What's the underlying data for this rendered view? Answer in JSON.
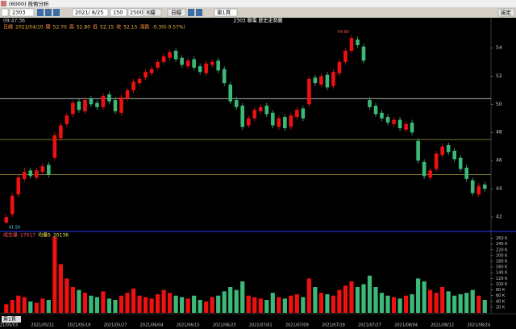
{
  "toolbar": {
    "window_title": "(6000) 技術分析",
    "symbol": "2303",
    "date": "2021/ 8/25",
    "count": "150",
    "count2": "2500",
    "buttons": [
      "K線",
      "日線",
      "設定"
    ],
    "page": "第1頁"
  },
  "status": {
    "time": "09:47:36",
    "info": [
      "日線",
      "2021/04/10",
      "開",
      "52.70",
      "高",
      "52.80",
      "低",
      "52.15",
      "收",
      "52.15",
      "漲跌",
      "-0.30(-0.57%)"
    ]
  },
  "chart_data": {
    "type": "candlestick",
    "title": "2303 聯電 歷史走勢圖",
    "categories": [
      "2021/05/03",
      null,
      null,
      null,
      null,
      null,
      "2021/05/11",
      null,
      null,
      null,
      null,
      null,
      "2021/05/19",
      null,
      null,
      null,
      null,
      null,
      "2021/05/27",
      null,
      null,
      null,
      null,
      null,
      "2021/06/04",
      null,
      null,
      null,
      null,
      null,
      "2021/06/15",
      null,
      null,
      null,
      null,
      null,
      "2021/06/23",
      null,
      null,
      null,
      null,
      null,
      "2021/07/01",
      null,
      null,
      null,
      null,
      null,
      "2021/07/09",
      null,
      null,
      null,
      null,
      null,
      "2021/07/19",
      null,
      null,
      null,
      null,
      null,
      "2021/07/27",
      null,
      null,
      null,
      null,
      null,
      "2021/08/04",
      null,
      null,
      null,
      null,
      null,
      "2021/08/12",
      null,
      null,
      null,
      null,
      null,
      "2021/08/24",
      null
    ],
    "open": [
      41.6,
      42.2,
      43.6,
      44.7,
      45.3,
      44.8,
      45.2,
      45.7,
      46.2,
      47.6,
      48.6,
      49.3,
      50.2,
      49.5,
      50.4,
      50.1,
      49.8,
      50.7,
      50.3,
      49.4,
      50.4,
      51.0,
      51.5,
      51.9,
      52.2,
      52.6,
      53.0,
      53.3,
      53.8,
      53.3,
      52.7,
      53.2,
      52.7,
      52.2,
      52.8,
      53.1,
      52.5,
      51.4,
      50.3,
      49.9,
      48.5,
      49.0,
      49.5,
      49.9,
      49.4,
      48.4,
      49.1,
      48.4,
      49.1,
      49.7,
      50.0,
      51.9,
      51.4,
      52.1,
      51.3,
      52.2,
      53.0,
      53.8,
      54.6,
      54.1,
      50.3,
      49.9,
      49.4,
      49.1,
      48.6,
      48.9,
      48.2,
      48.7,
      47.4,
      45.9,
      44.8,
      45.4,
      46.4,
      47.1,
      46.7,
      46.2,
      45.5,
      44.6,
      43.6,
      44.3
    ],
    "high": [
      42.2,
      43.7,
      45.0,
      45.5,
      45.5,
      45.5,
      45.8,
      45.9,
      48.0,
      48.7,
      49.4,
      50.3,
      50.4,
      50.5,
      50.6,
      50.3,
      50.8,
      50.9,
      50.5,
      50.7,
      51.2,
      51.8,
      52.0,
      52.5,
      52.7,
      53.2,
      53.6,
      53.9,
      54.0,
      53.5,
      53.3,
      53.4,
      52.9,
      53.1,
      53.2,
      53.3,
      52.7,
      51.6,
      50.5,
      50.1,
      49.2,
      49.8,
      50.0,
      50.1,
      49.6,
      49.2,
      49.3,
      49.4,
      49.8,
      49.9,
      52.0,
      52.1,
      52.2,
      52.3,
      52.5,
      53.2,
      54.0,
      54.9,
      54.8,
      54.3,
      50.5,
      50.1,
      49.6,
      49.3,
      49.1,
      49.1,
      48.8,
      48.9,
      47.6,
      46.1,
      45.5,
      46.7,
      47.2,
      47.3,
      46.9,
      46.4,
      45.7,
      44.8,
      44.4,
      44.5
    ],
    "low": [
      41.5,
      42.0,
      43.4,
      44.5,
      44.7,
      44.6,
      45.0,
      44.8,
      46.0,
      47.4,
      48.4,
      49.1,
      49.4,
      49.3,
      49.8,
      49.6,
      49.6,
      50.0,
      49.3,
      49.2,
      50.2,
      50.8,
      51.3,
      51.7,
      52.0,
      52.4,
      52.8,
      53.1,
      53.0,
      52.6,
      52.5,
      52.4,
      52.1,
      52.0,
      52.6,
      52.2,
      51.3,
      50.0,
      49.6,
      48.2,
      48.3,
      48.8,
      49.3,
      49.1,
      48.3,
      48.2,
      48.1,
      48.2,
      48.9,
      48.8,
      49.8,
      51.3,
      51.2,
      51.0,
      51.1,
      52.0,
      52.8,
      53.6,
      54.0,
      52.9,
      49.6,
      49.1,
      48.8,
      48.5,
      48.4,
      48.1,
      48.0,
      47.8,
      45.8,
      44.7,
      44.6,
      45.2,
      46.2,
      46.4,
      45.9,
      45.2,
      44.5,
      43.5,
      43.4,
      43.8
    ],
    "close": [
      42.0,
      43.5,
      44.8,
      45.2,
      44.9,
      45.3,
      45.6,
      45.0,
      47.8,
      48.5,
      49.2,
      50.1,
      49.6,
      50.3,
      50.0,
      49.8,
      50.6,
      50.2,
      49.5,
      50.5,
      51.0,
      51.6,
      51.8,
      52.3,
      52.5,
      53.0,
      53.4,
      53.7,
      53.2,
      52.8,
      53.1,
      52.6,
      52.3,
      52.9,
      53.0,
      52.4,
      51.5,
      50.2,
      49.8,
      48.4,
      49.0,
      49.6,
      49.8,
      49.3,
      48.5,
      49.0,
      48.3,
      49.2,
      49.6,
      49.0,
      51.8,
      51.5,
      52.0,
      51.2,
      52.3,
      53.0,
      53.8,
      54.7,
      54.2,
      53.1,
      49.8,
      49.3,
      49.0,
      48.7,
      48.9,
      48.3,
      48.6,
      48.0,
      46.0,
      44.9,
      45.3,
      46.5,
      47.0,
      46.6,
      46.1,
      45.4,
      44.7,
      43.7,
      44.2,
      44.0
    ],
    "volume": [
      30,
      45,
      60,
      55,
      40,
      35,
      50,
      45,
      265,
      170,
      120,
      90,
      80,
      70,
      60,
      55,
      75,
      50,
      45,
      60,
      70,
      85,
      60,
      55,
      50,
      65,
      80,
      70,
      60,
      55,
      50,
      60,
      45,
      40,
      55,
      60,
      75,
      90,
      80,
      110,
      60,
      55,
      50,
      45,
      70,
      55,
      50,
      60,
      65,
      55,
      120,
      90,
      70,
      65,
      60,
      80,
      95,
      110,
      90,
      100,
      130,
      90,
      70,
      60,
      55,
      50,
      60,
      65,
      120,
      110,
      80,
      70,
      90,
      75,
      60,
      65,
      70,
      80,
      60,
      45
    ],
    "up_color": "#ee1111",
    "down_color": "#3cb878",
    "ylim": [
      41.2,
      55.0
    ],
    "yticks": [
      42,
      44,
      46,
      48,
      50,
      52,
      54
    ],
    "hlines": [
      {
        "value": 50.4,
        "color": "#c8c8c8"
      },
      {
        "value": 47.5,
        "color": "#a8a040"
      },
      {
        "value": 45.0,
        "color": "#a8a040"
      }
    ],
    "annotations": [
      "54.90",
      "41.50"
    ],
    "volume_panel": {
      "legend": [
        "成交量",
        "17017",
        "均量5",
        "20136"
      ],
      "ylim": [
        0,
        270
      ],
      "yticks": [
        {
          "value": 20,
          "label": "20 K"
        },
        {
          "value": 40,
          "label": "40 K"
        },
        {
          "value": 60,
          "label": "60 K"
        },
        {
          "value": 80,
          "label": "80 K"
        },
        {
          "value": 100,
          "label": "100 K"
        },
        {
          "value": 120,
          "label": "120 K"
        },
        {
          "value": 140,
          "label": "140 K"
        },
        {
          "value": 160,
          "label": "160 K"
        },
        {
          "value": 180,
          "label": "180 K"
        },
        {
          "value": 200,
          "label": "200 K"
        },
        {
          "value": 220,
          "label": "220 K"
        },
        {
          "value": 240,
          "label": "240 K"
        },
        {
          "value": 260,
          "label": "260 K"
        }
      ]
    }
  }
}
